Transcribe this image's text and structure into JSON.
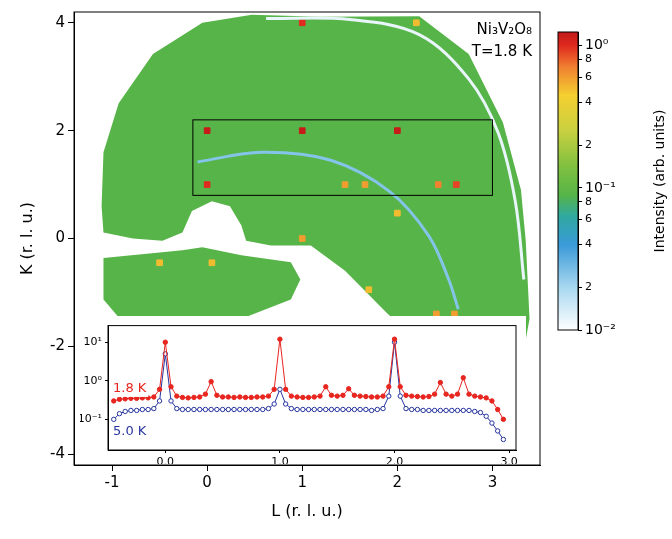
{
  "chart_data": [
    {
      "type": "heatmap",
      "annotations": [
        "Ni₃V₂O₈",
        "T=1.8 K"
      ],
      "x_label": "L (r. l. u.)",
      "y_label": "K (r. l. u.)",
      "xlim": [
        -1.4,
        3.5
      ],
      "ylim": [
        -4.2,
        4.2
      ],
      "xticks": [
        -1,
        0,
        1,
        2,
        3
      ],
      "yticks": [
        -4,
        -2,
        0,
        2,
        4
      ],
      "grid": false,
      "background_intensity": 0.09,
      "coverage": [
        {
          "L": [
            -1.11,
            -1.09,
            -0.93,
            -0.57,
            -0.05,
            0.47,
            1.19,
            2.23,
            2.75,
            3.11,
            3.3,
            3.35,
            3.39,
            3.26,
            3.01,
            2.75,
            2.44,
            1.9,
            1.45,
            1.09,
            0.67,
            0.41,
            0.36,
            0.24,
            0.05,
            -0.16,
            -0.26,
            -0.47,
            -0.78,
            -1.09
          ],
          "K": [
            0.6,
            1.6,
            2.51,
            3.42,
            4.0,
            4.15,
            4.11,
            4.12,
            3.42,
            2.15,
            0.9,
            -0.04,
            -1.49,
            -2.76,
            -3.95,
            -3.31,
            -2.22,
            -1.4,
            -0.6,
            -0.13,
            -0.13,
            -0.04,
            0.24,
            0.6,
            0.69,
            0.51,
            0.11,
            -0.04,
            0.0,
            0.11
          ]
        },
        {
          "L": [
            -1.09,
            -0.26,
            -0.05,
            0.36,
            0.88,
            0.98,
            0.88,
            0.36,
            -0.26,
            -0.83,
            -1.09
          ],
          "K": [
            -0.36,
            -0.22,
            -0.16,
            -0.31,
            -0.44,
            -0.76,
            -1.13,
            -1.49,
            -1.71,
            -1.67,
            -1.13
          ]
        }
      ],
      "rings": [
        {
          "L": [
            0.62,
            1.5,
            2.23,
            2.75,
            3.06,
            3.24,
            3.33
          ],
          "K": [
            4.08,
            4.06,
            3.78,
            2.96,
            1.96,
            0.69,
            -0.76
          ],
          "intensity": 0.012
        },
        {
          "L": [
            -0.1,
            0.57,
            1.3,
            1.92,
            2.33,
            2.54,
            2.64
          ],
          "K": [
            1.42,
            1.6,
            1.45,
            0.87,
            0.05,
            -0.76,
            -1.31
          ],
          "intensity": 0.025
        }
      ],
      "peaks": {
        "L": [
          1.0,
          2.2,
          0.0,
          1.0,
          2.0,
          0.0,
          1.45,
          1.66,
          2.43,
          2.62,
          2.0,
          1.0,
          1.7,
          2.41,
          2.6,
          -0.5,
          0.05
        ],
        "K": [
          4.0,
          4.0,
          2.0,
          2.0,
          2.0,
          1.0,
          1.0,
          1.0,
          1.0,
          1.0,
          0.47,
          0.0,
          -0.95,
          -1.4,
          -1.4,
          -0.45,
          -0.45
        ],
        "intensity": [
          1.0,
          0.5,
          1.2,
          1.2,
          1.2,
          1.0,
          0.6,
          0.6,
          0.7,
          0.9,
          0.5,
          0.6,
          0.5,
          0.6,
          0.6,
          0.5,
          0.5
        ]
      },
      "box": {
        "xlim": [
          -0.15,
          3.0
        ],
        "ylim": [
          0.8,
          2.2
        ]
      },
      "colorbar": {
        "label": "Intensity (arb. units)",
        "log": true,
        "range": [
          0.01,
          1.25
        ],
        "ticks": [
          {
            "value": 0.01,
            "label": "10⁻²"
          },
          {
            "value": 0.02,
            "label": "2"
          },
          {
            "value": 0.04,
            "label": "4"
          },
          {
            "value": 0.06,
            "label": "6"
          },
          {
            "value": 0.08,
            "label": "8"
          },
          {
            "value": 0.1,
            "label": "10⁻¹"
          },
          {
            "value": 0.2,
            "label": "2"
          },
          {
            "value": 0.4,
            "label": "4"
          },
          {
            "value": 0.6,
            "label": "6"
          },
          {
            "value": 0.8,
            "label": "8"
          },
          {
            "value": 1,
            "label": "10⁰"
          }
        ]
      }
    },
    {
      "type": "line",
      "log": "y",
      "grid": false,
      "xlim": [
        -0.5,
        3.06
      ],
      "ylim": [
        0.016,
        27
      ],
      "xticks": [
        {
          "value": 0,
          "label": "0.0"
        },
        {
          "value": 1,
          "label": "1.0"
        },
        {
          "value": 2,
          "label": "2.0"
        },
        {
          "value": 3,
          "label": "3.0"
        }
      ],
      "yticks": [
        {
          "value": 0.1,
          "label": "10⁻¹"
        },
        {
          "value": 1,
          "label": "10⁰"
        },
        {
          "value": 10,
          "label": "10¹"
        }
      ],
      "x": [
        -0.45,
        -0.4,
        -0.35,
        -0.3,
        -0.25,
        -0.2,
        -0.15,
        -0.1,
        -0.05,
        0,
        0.05,
        0.1,
        0.15,
        0.2,
        0.25,
        0.3,
        0.35,
        0.4,
        0.45,
        0.5,
        0.55,
        0.6,
        0.65,
        0.7,
        0.75,
        0.8,
        0.85,
        0.9,
        0.95,
        1,
        1.05,
        1.1,
        1.15,
        1.2,
        1.25,
        1.3,
        1.35,
        1.4,
        1.45,
        1.5,
        1.55,
        1.6,
        1.65,
        1.7,
        1.75,
        1.8,
        1.85,
        1.9,
        1.95,
        2,
        2.05,
        2.1,
        2.15,
        2.2,
        2.25,
        2.3,
        2.35,
        2.4,
        2.45,
        2.5,
        2.55,
        2.6,
        2.65,
        2.7,
        2.75,
        2.8,
        2.85,
        2.9,
        2.95
      ],
      "series": [
        {
          "name": "1.8 K",
          "color": "#e8251f",
          "marker": "circle",
          "line_style": "solid",
          "values": [
            0.3,
            0.33,
            0.34,
            0.35,
            0.35,
            0.36,
            0.36,
            0.38,
            0.6,
            10,
            0.7,
            0.4,
            0.37,
            0.36,
            0.37,
            0.38,
            0.45,
            0.95,
            0.42,
            0.38,
            0.38,
            0.37,
            0.38,
            0.37,
            0.37,
            0.38,
            0.38,
            0.4,
            0.6,
            12,
            0.6,
            0.4,
            0.38,
            0.37,
            0.37,
            0.38,
            0.4,
            0.7,
            0.42,
            0.4,
            0.42,
            0.62,
            0.42,
            0.4,
            0.39,
            0.38,
            0.38,
            0.4,
            0.7,
            12,
            0.7,
            0.42,
            0.4,
            0.39,
            0.38,
            0.39,
            0.45,
            0.9,
            0.45,
            0.4,
            0.45,
            1.2,
            0.45,
            0.4,
            0.38,
            0.36,
            0.3,
            0.18,
            0.1
          ]
        },
        {
          "name": "5.0 K",
          "color": "#2836a0",
          "marker": "open_circle",
          "line_style": "solid",
          "values": [
            0.1,
            0.14,
            0.16,
            0.17,
            0.17,
            0.18,
            0.18,
            0.19,
            0.3,
            5,
            0.3,
            0.19,
            0.18,
            0.18,
            0.18,
            0.18,
            0.18,
            0.18,
            0.18,
            0.18,
            0.18,
            0.18,
            0.18,
            0.18,
            0.18,
            0.18,
            0.18,
            0.19,
            0.25,
            0.6,
            0.25,
            0.19,
            0.18,
            0.18,
            0.18,
            0.18,
            0.18,
            0.18,
            0.18,
            0.18,
            0.18,
            0.18,
            0.18,
            0.18,
            0.18,
            0.17,
            0.18,
            0.19,
            0.4,
            10,
            0.4,
            0.19,
            0.18,
            0.18,
            0.17,
            0.17,
            0.17,
            0.17,
            0.17,
            0.17,
            0.17,
            0.17,
            0.17,
            0.16,
            0.15,
            0.12,
            0.08,
            0.05,
            0.03
          ]
        }
      ]
    }
  ]
}
